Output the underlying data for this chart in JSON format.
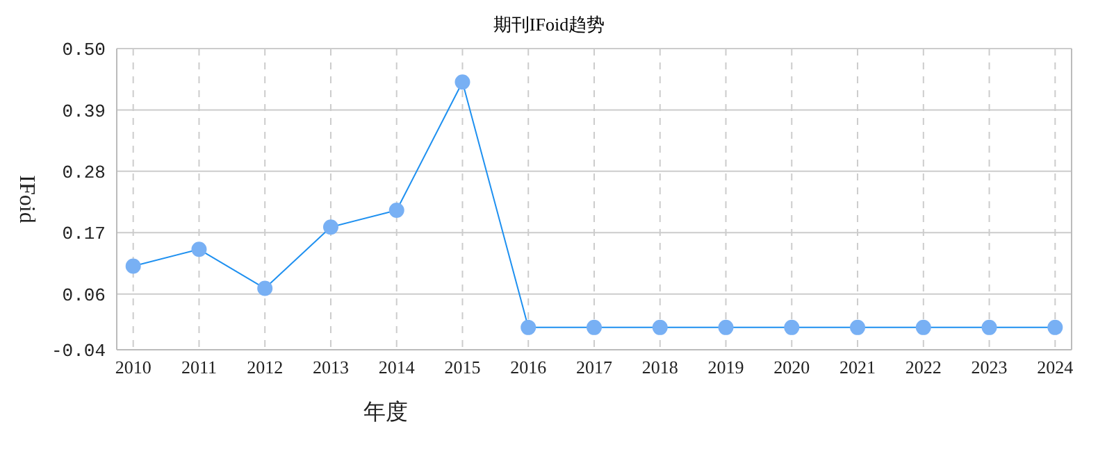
{
  "chart_data": {
    "type": "line",
    "title": "期刊IFoid趋势",
    "xlabel": "年度",
    "ylabel": "IFoid",
    "categories": [
      "2010",
      "2011",
      "2012",
      "2013",
      "2014",
      "2015",
      "2016",
      "2017",
      "2018",
      "2019",
      "2020",
      "2021",
      "2022",
      "2023",
      "2024"
    ],
    "series": [
      {
        "color": "#1e90f0",
        "values": [
          0.11,
          0.14,
          0.07,
          0.18,
          0.21,
          0.44,
          0,
          0,
          0,
          0,
          0,
          0,
          0,
          0,
          0
        ]
      }
    ],
    "ylim": [
      -0.04,
      0.5
    ],
    "yticks": [
      -0.04,
      0.06,
      0.17,
      0.28,
      0.39,
      {
        "value": 0.5,
        "label": "0.50"
      }
    ],
    "grid": true,
    "marker": "circle"
  }
}
